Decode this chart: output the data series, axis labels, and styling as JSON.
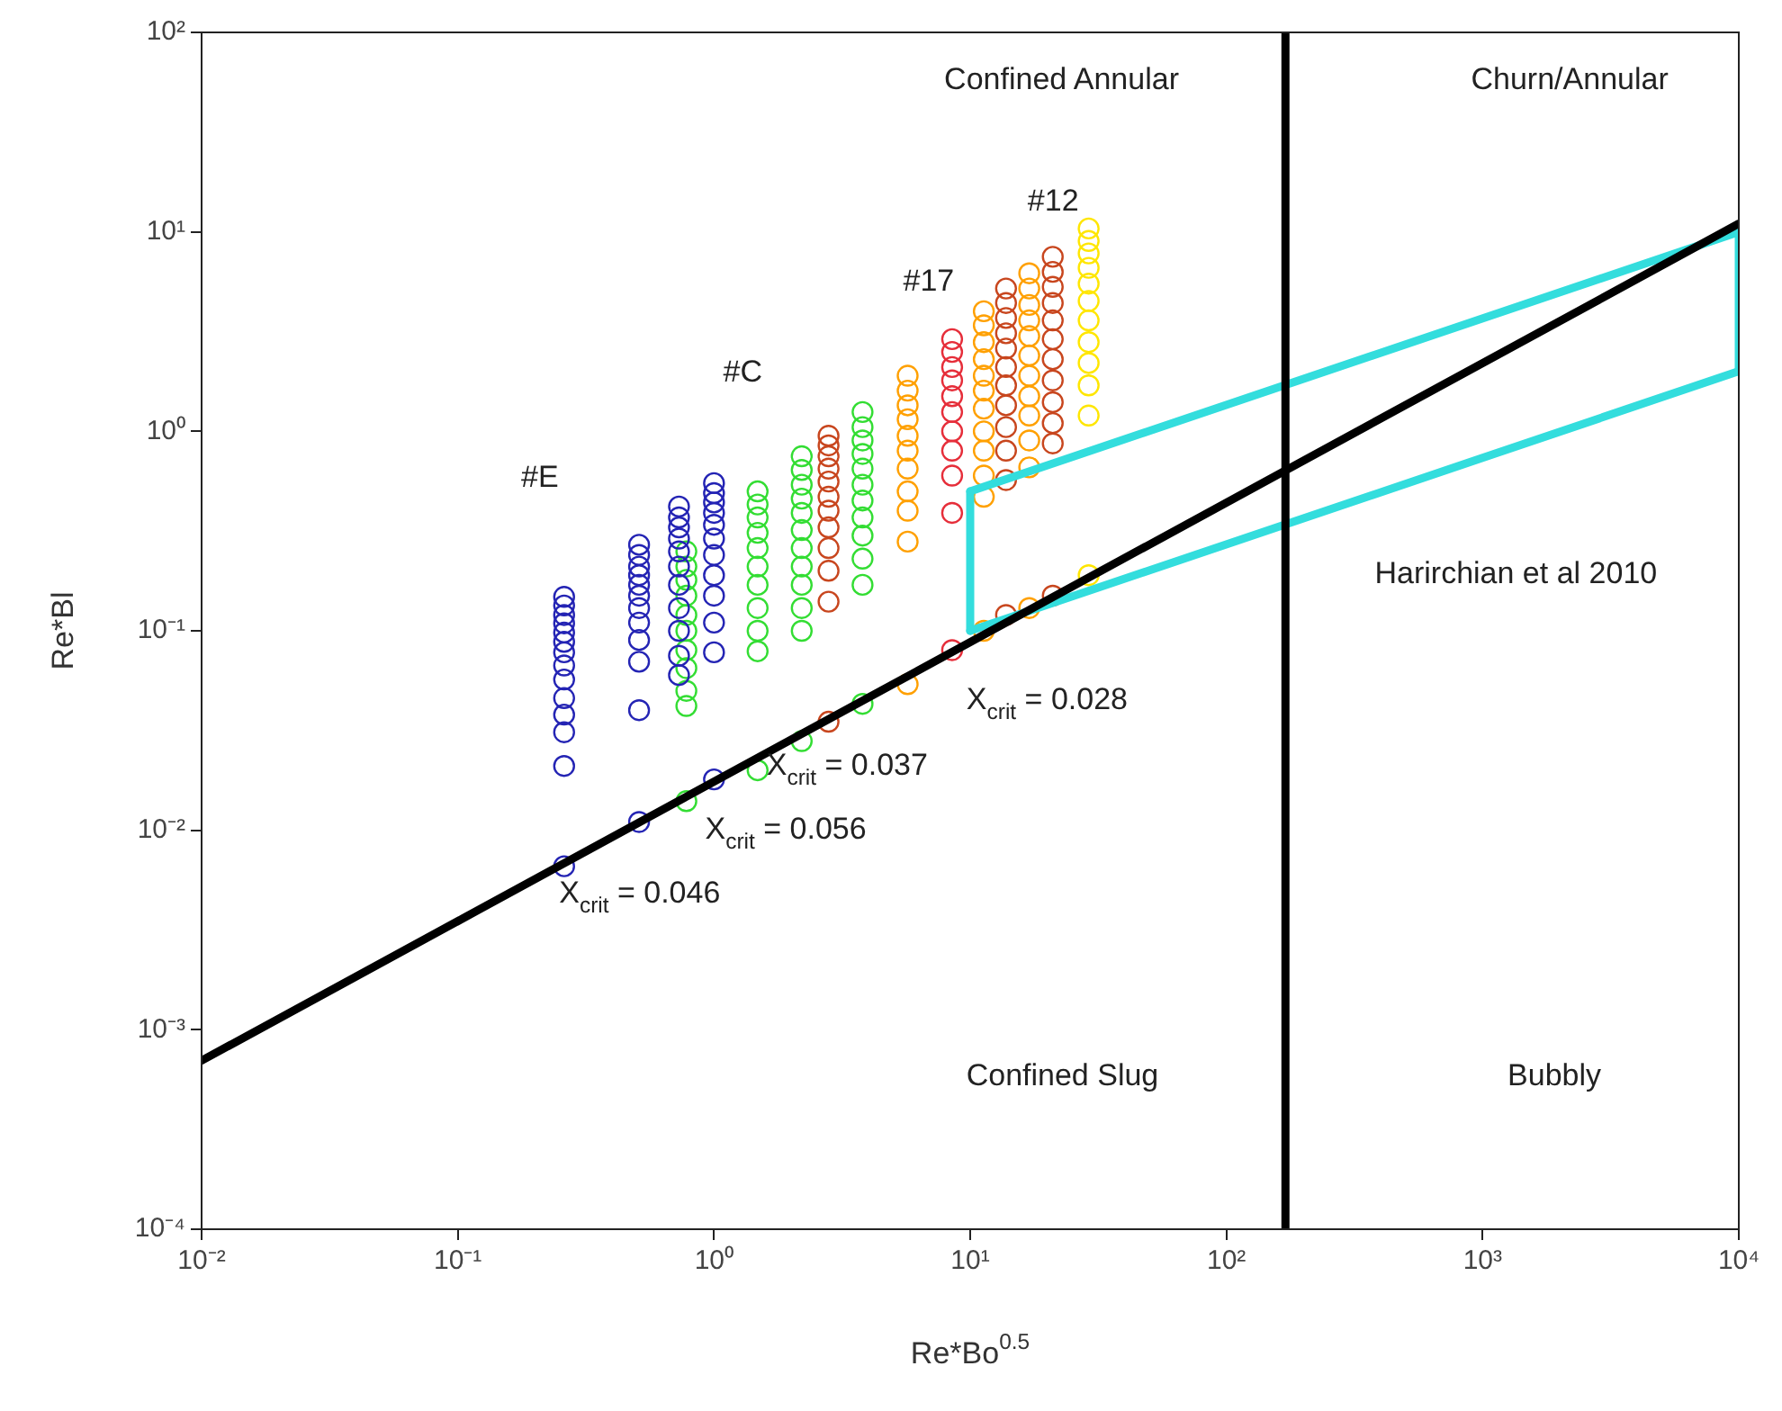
{
  "chart_data": {
    "type": "scatter",
    "xlabel": "Re*Bo$^{0.5}$",
    "ylabel": "Re*Bl",
    "log": "xy",
    "grid": false,
    "legend": false,
    "marker": "circle",
    "xlim": [
      0.01,
      10000
    ],
    "ylim": [
      0.0001,
      100
    ],
    "xticks": [
      {
        "value": 0.01,
        "label": "10⁻²"
      },
      {
        "value": 0.1,
        "label": "10⁻¹"
      },
      {
        "value": 1,
        "label": "10⁰"
      },
      {
        "value": 10,
        "label": "10¹"
      },
      {
        "value": 100,
        "label": "10²"
      },
      {
        "value": 1000,
        "label": "10³"
      },
      {
        "value": 10000,
        "label": "10⁴"
      }
    ],
    "yticks": [
      {
        "value": 0.0001,
        "label": "10⁻⁴"
      },
      {
        "value": 0.001,
        "label": "10⁻³"
      },
      {
        "value": 0.01,
        "label": "10⁻²"
      },
      {
        "value": 0.1,
        "label": "10⁻¹"
      },
      {
        "value": 1,
        "label": "10⁰"
      },
      {
        "value": 10,
        "label": "10¹"
      },
      {
        "value": 100,
        "label": "10²"
      }
    ],
    "series": [
      {
        "color": "#2424b4",
        "x": [
          0.26,
          0.26,
          0.26,
          0.26,
          0.26,
          0.26,
          0.26,
          0.26,
          0.26,
          0.26,
          0.26,
          0.26,
          0.26,
          0.26,
          0.51,
          0.51,
          0.51,
          0.51,
          0.51,
          0.51,
          0.51,
          0.51,
          0.51,
          0.51,
          0.51,
          0.51,
          0.73,
          0.73,
          0.73,
          0.73,
          0.73,
          0.73,
          0.73,
          0.73,
          0.73,
          0.73,
          0.73,
          1,
          1,
          1,
          1,
          1,
          1,
          1,
          1,
          1,
          1,
          1,
          1
        ],
        "values": [
          0.148,
          0.134,
          0.12,
          0.109,
          0.098,
          0.088,
          0.078,
          0.067,
          0.057,
          0.046,
          0.038,
          0.031,
          0.021,
          0.0066,
          0.27,
          0.24,
          0.21,
          0.19,
          0.17,
          0.15,
          0.13,
          0.11,
          0.09,
          0.07,
          0.04,
          0.011,
          0.42,
          0.37,
          0.33,
          0.29,
          0.25,
          0.21,
          0.17,
          0.13,
          0.1,
          0.075,
          0.06,
          0.55,
          0.49,
          0.44,
          0.39,
          0.34,
          0.29,
          0.24,
          0.19,
          0.15,
          0.11,
          0.078,
          0.018
        ]
      },
      {
        "color": "#33dd33",
        "x": [
          0.78,
          0.78,
          0.78,
          0.78,
          0.78,
          0.78,
          0.78,
          0.78,
          0.78,
          0.78,
          0.78,
          1.48,
          1.48,
          1.48,
          1.48,
          1.48,
          1.48,
          1.48,
          1.48,
          1.48,
          1.48,
          1.48,
          2.2,
          2.2,
          2.2,
          2.2,
          2.2,
          2.2,
          2.2,
          2.2,
          2.2,
          2.2,
          2.2,
          2.2,
          3.8,
          3.8,
          3.8,
          3.8,
          3.8,
          3.8,
          3.8,
          3.8,
          3.8,
          3.8,
          3.8,
          3.8
        ],
        "values": [
          0.25,
          0.21,
          0.18,
          0.15,
          0.12,
          0.1,
          0.08,
          0.065,
          0.05,
          0.042,
          0.014,
          0.5,
          0.43,
          0.37,
          0.31,
          0.26,
          0.21,
          0.17,
          0.13,
          0.1,
          0.079,
          0.02,
          0.75,
          0.64,
          0.54,
          0.46,
          0.39,
          0.32,
          0.26,
          0.21,
          0.17,
          0.13,
          0.1,
          0.028,
          1.25,
          1.05,
          0.9,
          0.77,
          0.65,
          0.54,
          0.45,
          0.37,
          0.3,
          0.23,
          0.17,
          0.043
        ]
      },
      {
        "color": "#c8461e",
        "x": [
          2.8,
          2.8,
          2.8,
          2.8,
          2.8,
          2.8,
          2.8,
          2.8,
          2.8,
          2.8,
          2.8,
          2.8,
          13.8,
          13.8,
          13.8,
          13.8,
          13.8,
          13.8,
          13.8,
          13.8,
          13.8,
          13.8,
          13.8,
          13.8,
          21,
          21,
          21,
          21,
          21,
          21,
          21,
          21,
          21,
          21,
          21,
          21
        ],
        "values": [
          0.95,
          0.85,
          0.75,
          0.65,
          0.56,
          0.47,
          0.4,
          0.33,
          0.26,
          0.2,
          0.14,
          0.035,
          5.2,
          4.4,
          3.7,
          3.1,
          2.6,
          2.1,
          1.7,
          1.35,
          1.05,
          0.8,
          0.57,
          0.12,
          7.5,
          6.3,
          5.3,
          4.4,
          3.6,
          2.9,
          2.3,
          1.8,
          1.4,
          1.1,
          0.87,
          0.15
        ]
      },
      {
        "color": "#ffa000",
        "x": [
          5.7,
          5.7,
          5.7,
          5.7,
          5.7,
          5.7,
          5.7,
          5.7,
          5.7,
          5.7,
          5.7,
          11.3,
          11.3,
          11.3,
          11.3,
          11.3,
          11.3,
          11.3,
          11.3,
          11.3,
          11.3,
          11.3,
          11.3,
          17,
          17,
          17,
          17,
          17,
          17,
          17,
          17,
          17,
          17,
          17,
          17
        ],
        "values": [
          1.9,
          1.6,
          1.35,
          1.15,
          0.95,
          0.8,
          0.65,
          0.5,
          0.4,
          0.28,
          0.054,
          4,
          3.4,
          2.8,
          2.3,
          1.9,
          1.6,
          1.3,
          1,
          0.8,
          0.6,
          0.47,
          0.1,
          6.2,
          5.2,
          4.3,
          3.6,
          3,
          2.4,
          1.9,
          1.5,
          1.2,
          0.9,
          0.66,
          0.13
        ]
      },
      {
        "color": "#e62e3a",
        "x": [
          8.5,
          8.5,
          8.5,
          8.5,
          8.5,
          8.5,
          8.5,
          8.5,
          8.5,
          8.5,
          8.5
        ],
        "values": [
          2.9,
          2.5,
          2.1,
          1.8,
          1.5,
          1.25,
          1,
          0.8,
          0.6,
          0.39,
          0.08
        ]
      },
      {
        "color": "#ffe600",
        "x": [
          29,
          29,
          29,
          29,
          29,
          29,
          29,
          29,
          29,
          29,
          29,
          29
        ],
        "values": [
          10.4,
          9,
          7.8,
          6.6,
          5.5,
          4.5,
          3.6,
          2.8,
          2.2,
          1.7,
          1.2,
          0.19
        ]
      },
      {
        "type": "line",
        "marker": "none",
        "color": "#000000",
        "x": [
          0.01,
          10000
        ],
        "values": [
          0.0007,
          11
        ]
      },
      {
        "type": "line",
        "marker": "none",
        "color": "#33dddd",
        "x": [
          10,
          10000
        ],
        "values": [
          0.5,
          10
        ]
      },
      {
        "type": "line",
        "marker": "none",
        "color": "#33dddd",
        "x": [
          10,
          10000
        ],
        "values": [
          0.1,
          2
        ]
      },
      {
        "type": "line",
        "marker": "none",
        "color": "#33dddd",
        "x": [
          10,
          10
        ],
        "values": [
          0.1,
          0.5
        ]
      },
      {
        "type": "line",
        "marker": "none",
        "color": "#33dddd",
        "x": [
          10000,
          10000
        ],
        "values": [
          2,
          10
        ]
      }
    ],
    "ref_lines": [
      {
        "axis": "x",
        "value": 170,
        "color": "#000000"
      }
    ],
    "annotations": [
      "#E",
      "#C",
      "#17",
      "#12",
      "X$_{crit}$ = 0.046",
      "X$_{crit}$ = 0.056",
      "X$_{crit}$ = 0.037",
      "X$_{crit}$ = 0.028",
      "Confined Annular",
      "Churn/Annular",
      "Harirchian et al 2010",
      "Confined Slug",
      "Bubbly"
    ]
  }
}
